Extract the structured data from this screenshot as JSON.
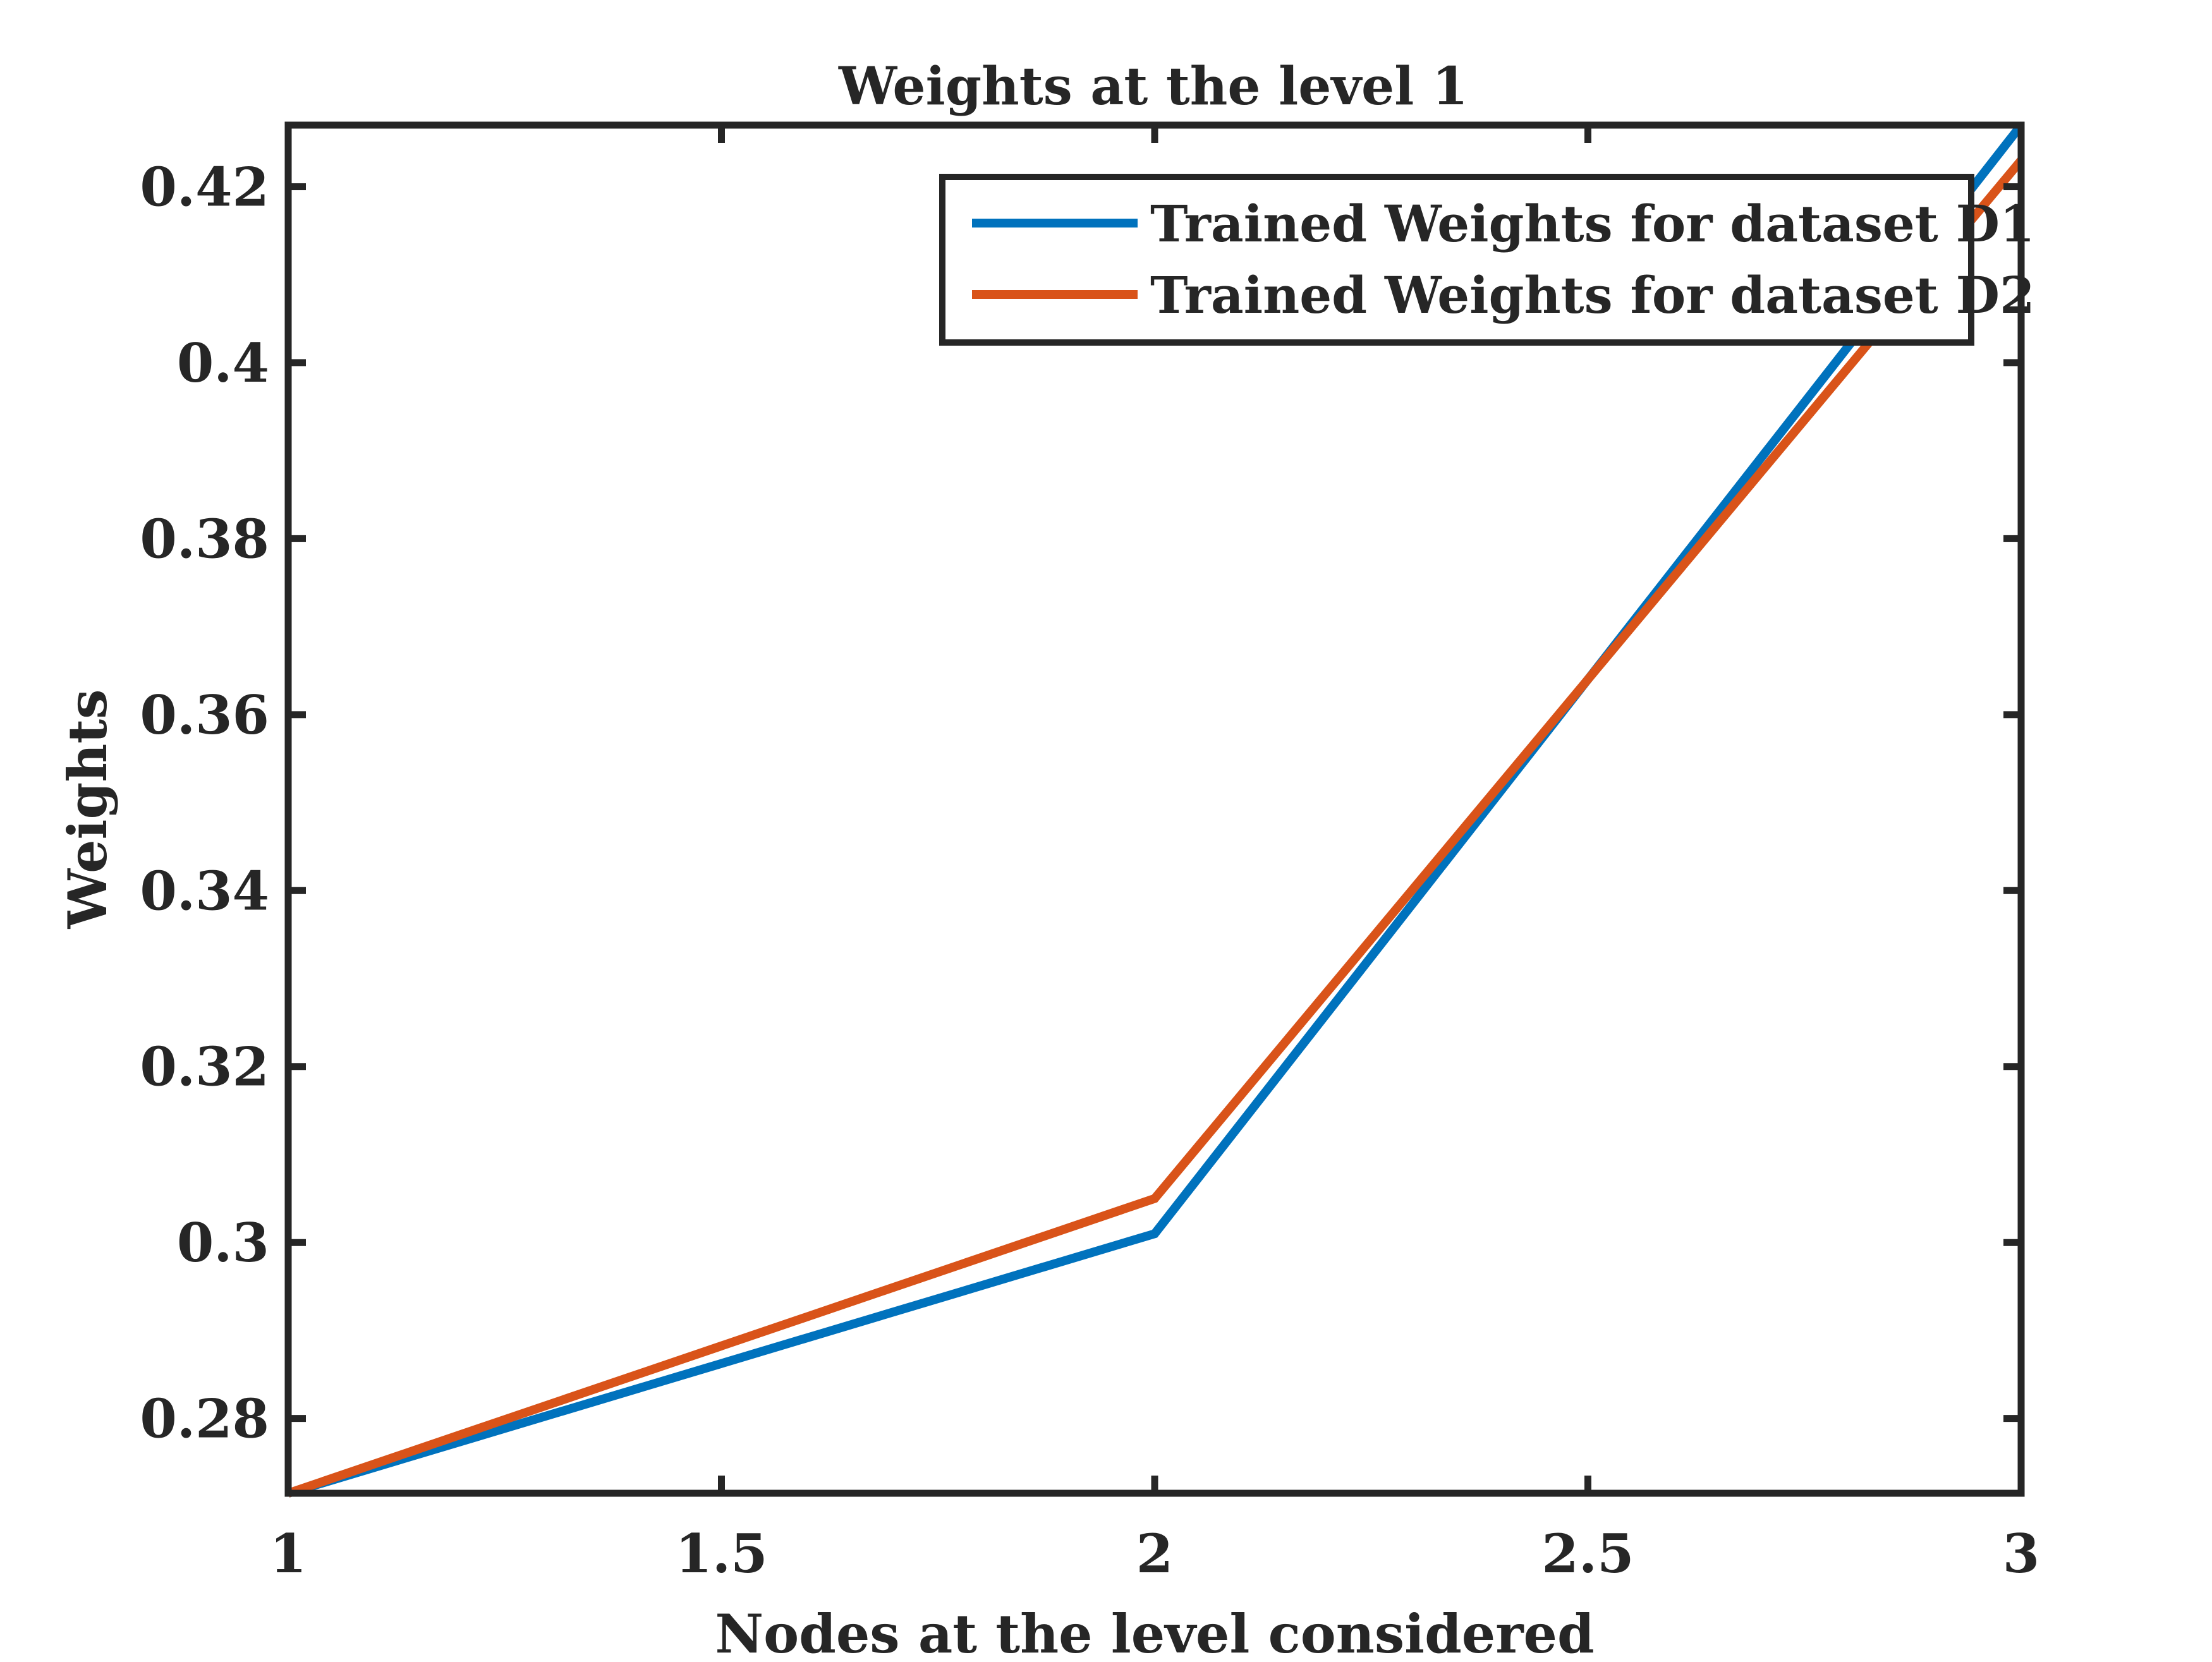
{
  "chart_data": {
    "type": "line",
    "title": "Weights at the level 1",
    "xlabel": "Nodes at the level considered",
    "ylabel": "Weights",
    "xlim": [
      1,
      3
    ],
    "ylim": [
      0.2715,
      0.427
    ],
    "xticks": [
      1,
      1.5,
      2,
      2.5,
      3
    ],
    "xtick_labels": [
      "1",
      "1.5",
      "2",
      "2.5",
      "3"
    ],
    "yticks": [
      0.28,
      0.3,
      0.32,
      0.34,
      0.36,
      0.38,
      0.4,
      0.42
    ],
    "ytick_labels": [
      "0.28",
      "0.3",
      "0.32",
      "0.34",
      "0.36",
      "0.38",
      "0.4",
      "0.42"
    ],
    "grid": false,
    "legend_position": "top-right",
    "x": [
      1,
      2,
      3
    ],
    "series": [
      {
        "name": "Trained Weights for dataset D1",
        "values": [
          0.2715,
          0.301,
          0.427
        ],
        "color": "#0072BD"
      },
      {
        "name": "Trained Weights for dataset D2",
        "values": [
          0.2715,
          0.305,
          0.423
        ],
        "color": "#D95319"
      }
    ]
  }
}
